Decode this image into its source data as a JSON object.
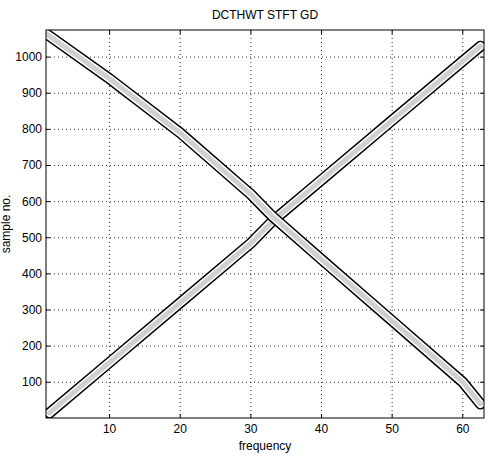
{
  "chart_data": {
    "type": "line",
    "title": "DCTHWT STFT GD",
    "x_label": "frequency",
    "y_label": "sample no.",
    "series": [
      {
        "color": "#d0d0d0",
        "x": [
          1.5,
          10,
          20,
          30,
          33,
          40,
          50,
          62.5
        ],
        "values": [
          15,
          155,
          320,
          485,
          545,
          660,
          825,
          1030
        ]
      },
      {
        "color": "#d0d0d0",
        "x": [
          1,
          10,
          20,
          30,
          33,
          40,
          50,
          60,
          62.5
        ],
        "values": [
          1065,
          940,
          790,
          620,
          560,
          440,
          270,
          100,
          40
        ]
      }
    ],
    "xlim": [
      1,
      63
    ],
    "ylim": [
      1,
      1075
    ],
    "xticks": [
      10,
      20,
      30,
      40,
      50,
      60
    ],
    "yticks": [
      100,
      200,
      300,
      400,
      500,
      600,
      700,
      800,
      900,
      1000
    ],
    "grid": true
  }
}
